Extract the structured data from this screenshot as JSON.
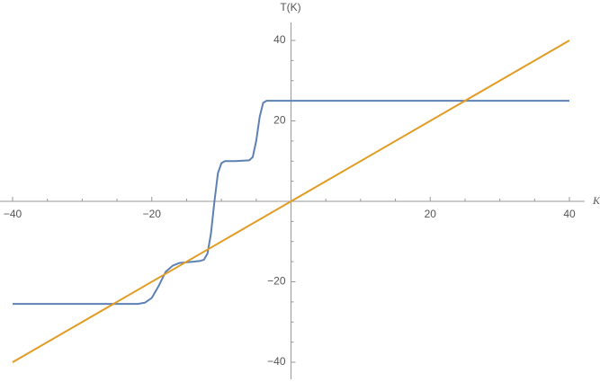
{
  "chart_data": {
    "type": "line",
    "x_label": "K",
    "y_label": "T(K)",
    "xlim": [
      -40,
      40
    ],
    "ylim": [
      -40,
      40
    ],
    "xticks": [
      {
        "value": -40,
        "label": "−40"
      },
      {
        "value": -20,
        "label": "−20"
      },
      20,
      40
    ],
    "yticks": [
      {
        "value": -40,
        "label": "−40"
      },
      {
        "value": -20,
        "label": "−20"
      },
      20,
      40
    ],
    "xminorticks": [
      -35,
      -30,
      -25,
      -15,
      -10,
      -5,
      5,
      10,
      15,
      25,
      30,
      35
    ],
    "yminorticks": [
      -35,
      -30,
      -25,
      -15,
      -10,
      -5,
      5,
      10,
      15,
      25,
      30,
      35
    ],
    "series": [
      {
        "color": "#5e81b5",
        "x": [
          -40,
          -22,
          -21,
          -20,
          -19,
          -18,
          -17,
          -16,
          -14,
          -13,
          -12.5,
          -12,
          -11.5,
          -11,
          -10.5,
          -10,
          -9.5,
          -8,
          -6,
          -5.5,
          -5,
          -4.5,
          -4,
          -3.5,
          -3,
          40
        ],
        "values": [
          -25.5,
          -25.5,
          -25.2,
          -24,
          -21,
          -17.5,
          -16,
          -15.3,
          -15,
          -14.8,
          -14.5,
          -13,
          -8,
          0,
          7,
          9.5,
          10,
          10,
          10.2,
          11,
          15,
          21,
          24.5,
          25,
          25,
          25
        ]
      },
      {
        "color": "#e19c24",
        "x": [
          -40,
          40
        ],
        "values": [
          -40,
          40
        ]
      }
    ]
  }
}
